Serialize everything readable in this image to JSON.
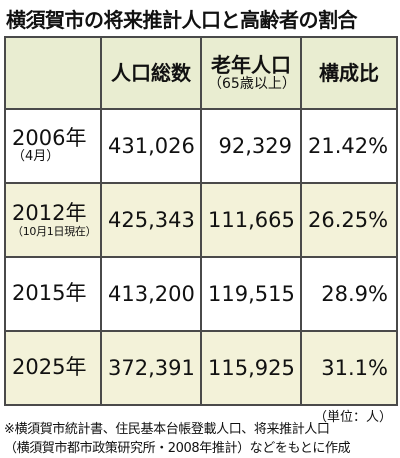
{
  "title": "横須賀市の将来推計人口と高齢者の割合",
  "table": {
    "headers": {
      "empty": "",
      "population": "人口総数",
      "elderly_main": "老年人口",
      "elderly_sub": "（65歳以上）",
      "ratio": "構成比"
    },
    "rows": [
      {
        "year": "2006年",
        "sub": "（4月）",
        "population": "431,026",
        "elderly": "92,329",
        "ratio": "21.42%"
      },
      {
        "year": "2012年",
        "sub": "（10月1日現在）",
        "population": "425,343",
        "elderly": "111,665",
        "ratio": "26.25%"
      },
      {
        "year": "2015年",
        "sub": "",
        "population": "413,200",
        "elderly": "119,515",
        "ratio": "28.9%"
      },
      {
        "year": "2025年",
        "sub": "",
        "population": "372,391",
        "elderly": "115,925",
        "ratio": "31.1%"
      }
    ]
  },
  "unit": "（単位：人）",
  "note_line1": "※横須賀市統計書、住民基本台帳登載人口、将来推計人口",
  "note_line2": "（横須賀市都市政策研究所・2008年推計）などをもとに作成",
  "colors": {
    "header_bg": "#e9edd1",
    "shaded_row_bg": "#f3f2d9",
    "border": "#4a4a4a"
  }
}
